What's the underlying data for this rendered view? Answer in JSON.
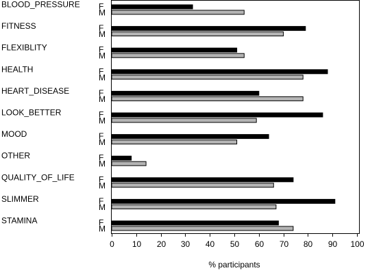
{
  "chart_data": {
    "type": "bar",
    "orientation": "horizontal",
    "categories": [
      "BLOOD_PRESSURE",
      "FITNESS",
      "FLEXIBLITY",
      "HEALTH",
      "HEART_DISEASE",
      "LOOK_BETTER",
      "MOOD",
      "OTHER",
      "QUALITY_OF_LIFE",
      "SLIMMER",
      "STAMINA"
    ],
    "series": [
      {
        "name": "F",
        "color": "#000000",
        "values": [
          33,
          79,
          51,
          88,
          60,
          86,
          64,
          8,
          74,
          91,
          68
        ]
      },
      {
        "name": "M",
        "color": "#b4b4b4",
        "values": [
          54,
          70,
          54,
          78,
          78,
          59,
          51,
          14,
          66,
          67,
          74
        ]
      }
    ],
    "xlabel": "% participants",
    "xlim": [
      0,
      100
    ],
    "xticks": [
      0,
      10,
      20,
      30,
      40,
      50,
      60,
      70,
      80,
      90,
      100
    ],
    "grid": false
  }
}
